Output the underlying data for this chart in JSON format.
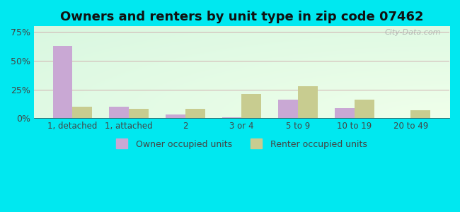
{
  "title": "Owners and renters by unit type in zip code 07462",
  "categories": [
    "1, detached",
    "1, attached",
    "2",
    "3 or 4",
    "5 to 9",
    "10 to 19",
    "20 to 49"
  ],
  "owner_values": [
    63,
    10,
    3,
    0.5,
    16,
    9,
    0
  ],
  "renter_values": [
    10,
    8,
    8,
    21,
    28,
    16,
    7
  ],
  "owner_color": "#c9a8d4",
  "renter_color": "#c8cc90",
  "background_color": "#00e8f0",
  "yticks": [
    0,
    25,
    50,
    75
  ],
  "ylim": [
    0,
    80
  ],
  "bar_width": 0.35,
  "legend_owner": "Owner occupied units",
  "legend_renter": "Renter occupied units",
  "title_fontsize": 13,
  "watermark": "City-Data.com",
  "tick_color": "#444444",
  "grid_color": "#d0b0b0"
}
